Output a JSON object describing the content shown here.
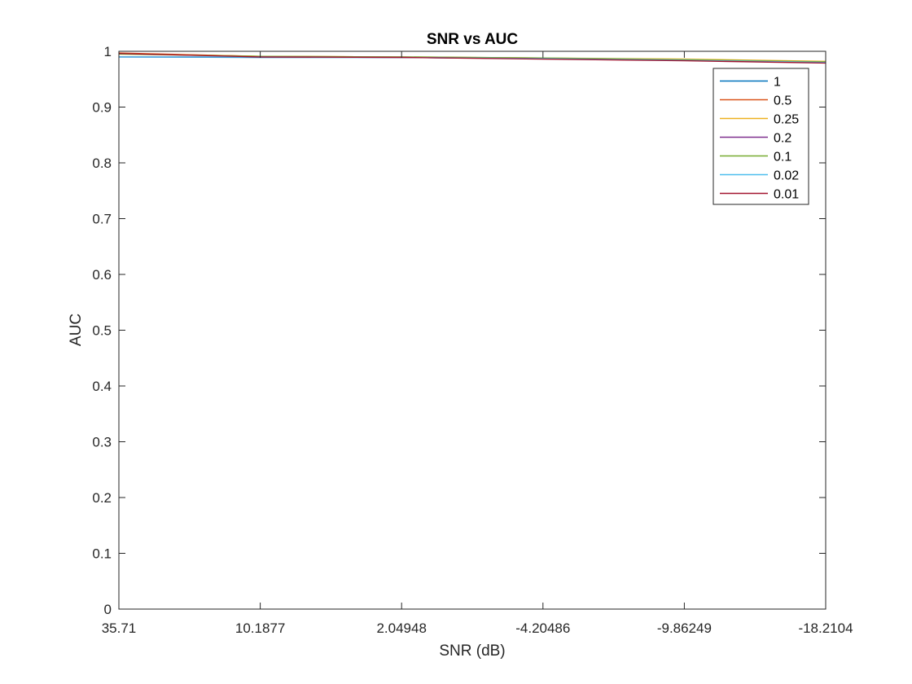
{
  "chart_data": {
    "type": "line",
    "title": "SNR vs AUC",
    "xlabel": "SNR (dB)",
    "ylabel": "AUC",
    "x_tick_labels": [
      "35.71",
      "10.1877",
      "2.04948",
      "-4.20486",
      "-9.86249",
      "-18.2104"
    ],
    "y_ticks": [
      0,
      0.1,
      0.2,
      0.3,
      0.4,
      0.5,
      0.6,
      0.7,
      0.8,
      0.9,
      1
    ],
    "ylim": [
      0,
      1
    ],
    "x_scale": "categorical",
    "grid": false,
    "legend_position": "top-right",
    "series": [
      {
        "name": "1",
        "color": "#0072BD",
        "values": [
          0.99,
          0.989,
          0.989,
          0.987,
          0.984,
          0.98
        ]
      },
      {
        "name": "0.5",
        "color": "#D95319",
        "values": [
          0.997,
          0.991,
          0.99,
          0.987,
          0.985,
          0.981
        ]
      },
      {
        "name": "0.25",
        "color": "#EDB120",
        "values": [
          0.996,
          0.991,
          0.99,
          0.988,
          0.986,
          0.982
        ]
      },
      {
        "name": "0.2",
        "color": "#7E2F8E",
        "values": [
          0.99,
          0.99,
          0.989,
          0.987,
          0.984,
          0.98
        ]
      },
      {
        "name": "0.1",
        "color": "#77AC30",
        "values": [
          0.995,
          0.991,
          0.99,
          0.988,
          0.985,
          0.981
        ]
      },
      {
        "name": "0.02",
        "color": "#4DBEEE",
        "values": [
          0.99,
          0.99,
          0.989,
          0.987,
          0.984,
          0.98
        ]
      },
      {
        "name": "0.01",
        "color": "#A2142F",
        "values": [
          0.996,
          0.99,
          0.989,
          0.986,
          0.983,
          0.979
        ]
      }
    ]
  }
}
